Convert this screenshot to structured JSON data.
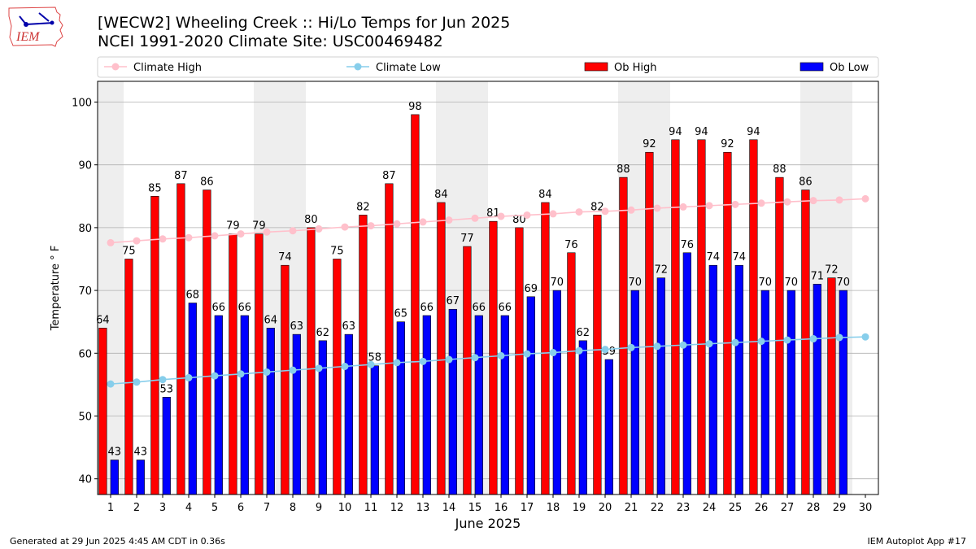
{
  "header": {
    "title_line1": "[WECW2] Wheeling Creek :: Hi/Lo Temps for Jun 2025",
    "title_line2": "NCEI 1991-2020 Climate Site: USC00469482",
    "logo_text": "IEM"
  },
  "footer": {
    "left": "Generated at 29 Jun 2025 4:45 AM CDT in 0.36s",
    "right": "IEM Autoplot App #17"
  },
  "colors": {
    "climate_high": "#ffc0cb",
    "climate_low": "#87ceeb",
    "ob_high": "#ff0000",
    "ob_low": "#0000ff",
    "weekend_band": "#eeeeee",
    "grid": "#b0b0b0"
  },
  "chart_data": {
    "type": "bar",
    "xlabel": "June 2025",
    "ylabel": "Temperature ° F",
    "xlim": [
      0.5,
      30.5
    ],
    "ylim": [
      37.5,
      103.3
    ],
    "yticks": [
      40,
      50,
      60,
      70,
      80,
      90,
      100
    ],
    "categories": [
      "1",
      "2",
      "3",
      "4",
      "5",
      "6",
      "7",
      "8",
      "9",
      "10",
      "11",
      "12",
      "13",
      "14",
      "15",
      "16",
      "17",
      "18",
      "19",
      "20",
      "21",
      "22",
      "23",
      "24",
      "25",
      "26",
      "27",
      "28",
      "29",
      "30"
    ],
    "grid": "horizontal",
    "legend_position": "top",
    "weekend_days": [
      1,
      7,
      8,
      14,
      15,
      21,
      22,
      28,
      29
    ],
    "series": [
      {
        "name": "Climate High",
        "kind": "line",
        "values": [
          77.6,
          77.9,
          78.2,
          78.4,
          78.7,
          79.0,
          79.3,
          79.5,
          79.8,
          80.1,
          80.3,
          80.6,
          80.9,
          81.2,
          81.5,
          81.8,
          82.0,
          82.2,
          82.5,
          82.6,
          82.8,
          83.1,
          83.3,
          83.5,
          83.7,
          83.9,
          84.1,
          84.3,
          84.4,
          84.6
        ]
      },
      {
        "name": "Climate Low",
        "kind": "line",
        "values": [
          55.1,
          55.4,
          55.8,
          56.1,
          56.4,
          56.7,
          57.0,
          57.3,
          57.6,
          57.9,
          58.2,
          58.5,
          58.7,
          59.0,
          59.3,
          59.6,
          59.9,
          60.1,
          60.4,
          60.6,
          60.9,
          61.1,
          61.3,
          61.5,
          61.7,
          61.9,
          62.1,
          62.3,
          62.5,
          62.6
        ]
      },
      {
        "name": "Ob High",
        "kind": "bar",
        "values": [
          64,
          75,
          85,
          87,
          86,
          79,
          79,
          74,
          80,
          75,
          82,
          87,
          98,
          84,
          77,
          81,
          80,
          84,
          76,
          82,
          88,
          92,
          94,
          94,
          92,
          94,
          88,
          86,
          72,
          null
        ]
      },
      {
        "name": "Ob Low",
        "kind": "bar",
        "values": [
          43,
          43,
          53,
          68,
          66,
          66,
          64,
          63,
          62,
          63,
          58,
          65,
          66,
          67,
          66,
          66,
          69,
          70,
          62,
          59,
          70,
          72,
          76,
          74,
          74,
          70,
          70,
          71,
          70,
          null
        ]
      }
    ]
  }
}
